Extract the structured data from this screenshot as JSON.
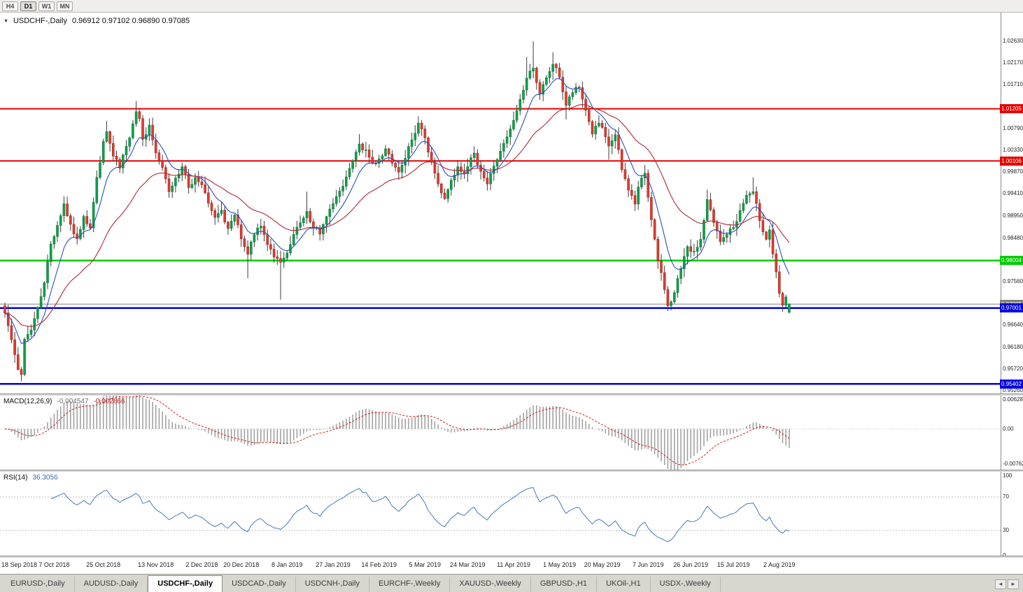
{
  "header": {
    "collapse_icon": "▼",
    "symbol": "USDCHF-,Daily",
    "ohlc": "0.96912 0.97102 0.96890 0.97085"
  },
  "toolbar": {
    "periods": [
      {
        "label": "H4",
        "active": false
      },
      {
        "label": "D1",
        "active": true
      },
      {
        "label": "W1",
        "active": false
      },
      {
        "label": "MN",
        "active": false
      }
    ]
  },
  "tabbar": {
    "left_arrow": "◄",
    "right_arrow": "►"
  },
  "tabs": [
    {
      "label": "EURUSD-,Daily",
      "active": false
    },
    {
      "label": "AUDUSD-,Daily",
      "active": false
    },
    {
      "label": "USDCHF-,Daily",
      "active": true
    },
    {
      "label": "USDCAD-,Daily",
      "active": false
    },
    {
      "label": "USDCNH-,Daily",
      "active": false
    },
    {
      "label": "EURCHF-,Weekly",
      "active": false
    },
    {
      "label": "XAUUSD-,Weekly",
      "active": false
    },
    {
      "label": "GBPUSD-,H1",
      "active": false
    },
    {
      "label": "UKOil-,H1",
      "active": false
    },
    {
      "label": "USDX-,Weekly",
      "active": false
    }
  ],
  "colors": {
    "bull": "#10a04a",
    "bull_edge": "#0b7d39",
    "bear": "#e23b2f",
    "bear_edge": "#aa251b",
    "wick": "#3d3d3d",
    "ma_fast": "#2a4fc0",
    "ma_slow": "#b02a35",
    "macd_hist": "#9c9c9c",
    "macd_signal": "#cc2424",
    "rsi": "#4579bd",
    "axis_line": "#8a8a8a",
    "indicator_level": "#bdbdbd"
  },
  "chart_data": {
    "type": "candlestick",
    "symbol": "USDCHF-",
    "timeframe": "Daily",
    "bar_count": 240,
    "first_open": 0.9705,
    "last_bar_ohlc": [
      0.96912,
      0.97102,
      0.9689,
      0.97085
    ],
    "seed": 7,
    "noise": 0.0013,
    "wick": 0.0016,
    "close_path": [
      [
        0,
        0.969
      ],
      [
        1,
        0.9665
      ],
      [
        2,
        0.9635
      ],
      [
        3,
        0.96
      ],
      [
        4,
        0.957
      ],
      [
        5,
        0.956
      ],
      [
        6,
        0.9635
      ],
      [
        8,
        0.9655
      ],
      [
        10,
        0.97
      ],
      [
        12,
        0.9755
      ],
      [
        14,
        0.9835
      ],
      [
        16,
        0.9875
      ],
      [
        18,
        0.992
      ],
      [
        20,
        0.9875
      ],
      [
        22,
        0.9845
      ],
      [
        24,
        0.9895
      ],
      [
        26,
        0.987
      ],
      [
        28,
        0.9975
      ],
      [
        30,
        1.005
      ],
      [
        31,
        1.0072
      ],
      [
        33,
        1.002
      ],
      [
        35,
        0.9995
      ],
      [
        37,
        1.004
      ],
      [
        39,
        1.009
      ],
      [
        40,
        1.0115
      ],
      [
        41,
        1.01
      ],
      [
        42,
        1.0058
      ],
      [
        44,
        1.0085
      ],
      [
        46,
        1.0028
      ],
      [
        48,
        0.9995
      ],
      [
        50,
        0.9945
      ],
      [
        52,
        0.9975
      ],
      [
        54,
        1.0
      ],
      [
        56,
        0.9955
      ],
      [
        58,
        0.9975
      ],
      [
        60,
        0.9962
      ],
      [
        62,
        0.992
      ],
      [
        64,
        0.989
      ],
      [
        66,
        0.9905
      ],
      [
        68,
        0.9868
      ],
      [
        70,
        0.9895
      ],
      [
        72,
        0.9845
      ],
      [
        74,
        0.9812
      ],
      [
        76,
        0.9855
      ],
      [
        78,
        0.9875
      ],
      [
        80,
        0.9835
      ],
      [
        82,
        0.9808
      ],
      [
        84,
        0.9795
      ],
      [
        86,
        0.9815
      ],
      [
        88,
        0.9855
      ],
      [
        90,
        0.988
      ],
      [
        92,
        0.9905
      ],
      [
        94,
        0.9872
      ],
      [
        96,
        0.9855
      ],
      [
        98,
        0.9895
      ],
      [
        100,
        0.992
      ],
      [
        102,
        0.9945
      ],
      [
        104,
        0.9975
      ],
      [
        106,
        1.001
      ],
      [
        108,
        1.0045
      ],
      [
        110,
        1.0032
      ],
      [
        112,
        1.0005
      ],
      [
        114,
        1.0015
      ],
      [
        116,
        1.0035
      ],
      [
        118,
        1.0005
      ],
      [
        120,
        0.9985
      ],
      [
        122,
        1.0015
      ],
      [
        124,
        1.0055
      ],
      [
        126,
        1.009
      ],
      [
        128,
        1.0058
      ],
      [
        130,
        1.0008
      ],
      [
        132,
        0.9962
      ],
      [
        134,
        0.9932
      ],
      [
        136,
        0.997
      ],
      [
        138,
        1.0
      ],
      [
        140,
        0.9985
      ],
      [
        141,
        1.0
      ],
      [
        143,
        1.0025
      ],
      [
        145,
        0.999
      ],
      [
        147,
        0.9962
      ],
      [
        149,
        1.0
      ],
      [
        151,
        1.003
      ],
      [
        153,
        1.006
      ],
      [
        155,
        1.0095
      ],
      [
        157,
        1.014
      ],
      [
        159,
        1.0185
      ],
      [
        161,
        1.0208
      ],
      [
        163,
        1.015
      ],
      [
        165,
        1.0185
      ],
      [
        167,
        1.0215
      ],
      [
        169,
        1.0188
      ],
      [
        171,
        1.0128
      ],
      [
        173,
        1.0155
      ],
      [
        175,
        1.0165
      ],
      [
        177,
        1.0118
      ],
      [
        179,
        1.0068
      ],
      [
        181,
        1.009
      ],
      [
        183,
        1.006
      ],
      [
        184,
        1.0042
      ],
      [
        186,
        1.0065
      ],
      [
        188,
        0.9992
      ],
      [
        190,
        0.995
      ],
      [
        192,
        0.992
      ],
      [
        193,
        0.9955
      ],
      [
        195,
        0.9985
      ],
      [
        197,
        0.9888
      ],
      [
        199,
        0.9798
      ],
      [
        201,
        0.974
      ],
      [
        202,
        0.9706
      ],
      [
        204,
        0.9732
      ],
      [
        206,
        0.9782
      ],
      [
        208,
        0.9828
      ],
      [
        210,
        0.9818
      ],
      [
        212,
        0.9845
      ],
      [
        214,
        0.9928
      ],
      [
        216,
        0.988
      ],
      [
        218,
        0.984
      ],
      [
        220,
        0.9856
      ],
      [
        222,
        0.987
      ],
      [
        224,
        0.9905
      ],
      [
        226,
        0.9938
      ],
      [
        228,
        0.9944
      ],
      [
        230,
        0.9886
      ],
      [
        232,
        0.9846
      ],
      [
        233,
        0.9865
      ],
      [
        234,
        0.9815
      ],
      [
        235,
        0.9775
      ],
      [
        236,
        0.973
      ],
      [
        237,
        0.9706
      ],
      [
        238,
        0.9722
      ],
      [
        239,
        0.9709
      ]
    ],
    "spikes": [
      {
        "bar": 5,
        "low": 0.9546
      },
      {
        "bar": 18,
        "high": 0.9936
      },
      {
        "bar": 31,
        "high": 1.0095
      },
      {
        "bar": 40,
        "high": 1.0137
      },
      {
        "bar": 74,
        "low": 0.9763
      },
      {
        "bar": 84,
        "low": 0.9718
      },
      {
        "bar": 92,
        "high": 0.9946
      },
      {
        "bar": 108,
        "high": 1.0067
      },
      {
        "bar": 126,
        "high": 1.0105
      },
      {
        "bar": 159,
        "high": 1.023
      },
      {
        "bar": 161,
        "high": 1.0263
      },
      {
        "bar": 167,
        "high": 1.024
      },
      {
        "bar": 171,
        "low": 1.0098
      },
      {
        "bar": 184,
        "low": 1.0013
      },
      {
        "bar": 195,
        "high": 1.0002
      },
      {
        "bar": 202,
        "low": 0.9694
      },
      {
        "bar": 214,
        "high": 0.995
      },
      {
        "bar": 228,
        "high": 0.9976
      },
      {
        "bar": 237,
        "low": 0.9692
      }
    ],
    "price_axis": {
      "max": 1.03234,
      "min": 0.952,
      "ticks": [
        "1.02630",
        "1.02170",
        "1.01710",
        "1.01250",
        "1.00790",
        "1.00330",
        "0.99870",
        "0.99410",
        "0.98950",
        "0.98480",
        "0.98020",
        "0.97560",
        "0.97100",
        "0.96640",
        "0.96180",
        "0.95720",
        "0.95260"
      ]
    },
    "levels": [
      {
        "price": 1.01205,
        "label": "1.01205",
        "color": "#e60000",
        "width": 2
      },
      {
        "price": 1.00106,
        "label": "1.00106",
        "color": "#e60000",
        "width": 2
      },
      {
        "price": 0.98004,
        "label": "0.98004",
        "color": "#00cc00",
        "width": 2.5
      },
      {
        "price": 0.97001,
        "label": "0.97001",
        "color": "#0000e0",
        "width": 2.5
      },
      {
        "price": 0.95402,
        "label": "0.95402",
        "color": "#0000e0",
        "width": 2.5
      }
    ],
    "current_price": {
      "price": 0.97085,
      "label": "0.97085",
      "color": "#7f7f7f",
      "width": 1
    },
    "moving_averages": [
      {
        "name": "fast",
        "period": 9,
        "color": "#2a4fc0"
      },
      {
        "name": "slow",
        "period": 30,
        "color": "#b02a35"
      }
    ],
    "date_axis": [
      [
        "18 Sep 2018",
        0
      ],
      [
        "7 Oct 2018",
        15
      ],
      [
        "25 Oct 2018",
        30
      ],
      [
        "13 Nov 2018",
        46
      ],
      [
        "2 Dec 2018",
        60
      ],
      [
        "20 Dec 2018",
        72
      ],
      [
        "8 Jan 2019",
        86
      ],
      [
        "27 Jan 2019",
        100
      ],
      [
        "14 Feb 2019",
        114
      ],
      [
        "5 Mar 2019",
        128
      ],
      [
        "24 Mar 2019",
        141
      ],
      [
        "11 Apr 2019",
        155
      ],
      [
        "1 May 2019",
        169
      ],
      [
        "20 May 2019",
        182
      ],
      [
        "7 Jun 2019",
        196
      ],
      [
        "26 Jun 2019",
        209
      ],
      [
        "15 Jul 2019",
        222
      ],
      [
        "2 Aug 2019",
        236
      ]
    ],
    "macd": {
      "label": "MACD(12,26,9)",
      "value_main": "-0.004547",
      "value_signal": "-0.002866",
      "fast": 12,
      "slow": 26,
      "signal": 9,
      "axis": {
        "max": 0.0072,
        "min": -0.0088,
        "ticks": [
          "0.006286",
          "0.00",
          "-0.00762"
        ]
      }
    },
    "rsi": {
      "label": "RSI(14)",
      "value": "36.3056",
      "period": 14,
      "levels": [
        70,
        30
      ],
      "ticks": [
        "100",
        "70",
        "30",
        "0"
      ]
    }
  }
}
